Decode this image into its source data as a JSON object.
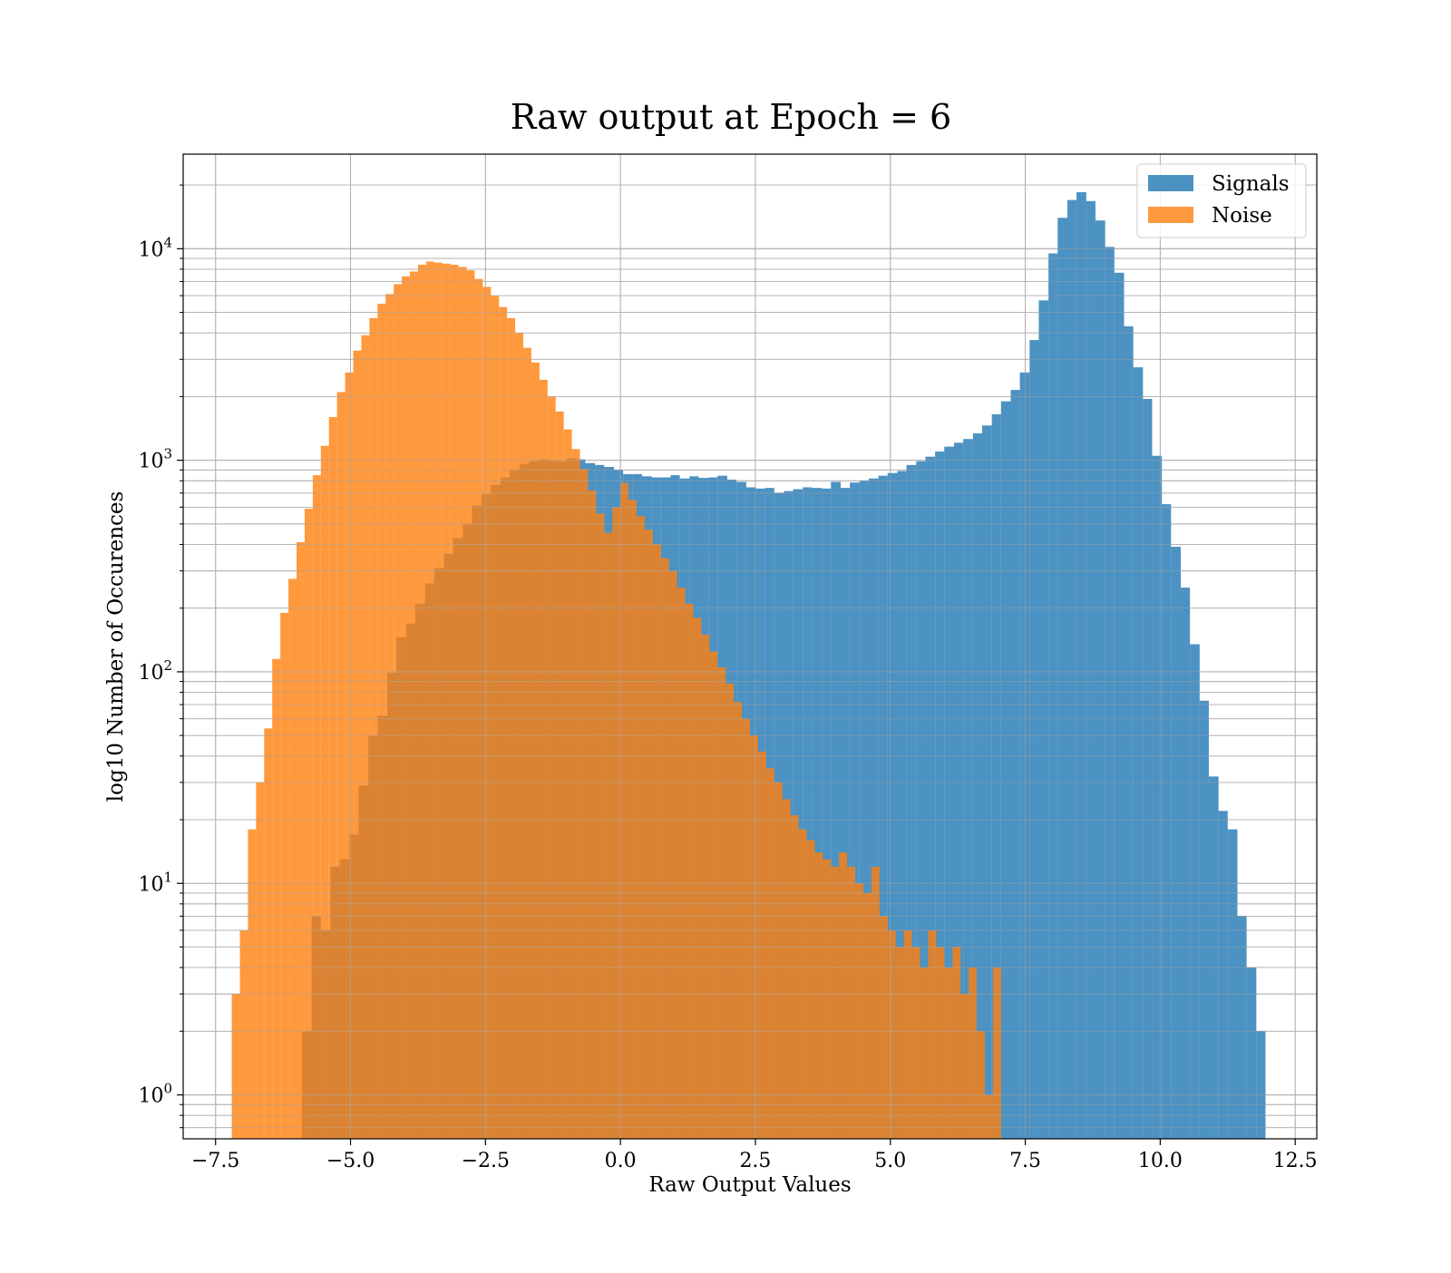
{
  "chart_data": {
    "type": "bar",
    "subtype": "overlaid-histogram",
    "title": "Raw output at Epoch = 6",
    "xlabel": "Raw Output Values",
    "ylabel": "log10 Number of Occurences",
    "y_scale": "log",
    "xlim": [
      -8.1,
      12.9
    ],
    "ylim": [
      0.62,
      28000
    ],
    "grid": true,
    "grid_minor": true,
    "legend": {
      "position": "top-right"
    },
    "x_ticks": [
      {
        "value": -7.5,
        "label": "−7.5"
      },
      {
        "value": -5.0,
        "label": "−5.0"
      },
      {
        "value": -2.5,
        "label": "−2.5"
      },
      {
        "value": 0.0,
        "label": "0.0"
      },
      {
        "value": 2.5,
        "label": "2.5"
      },
      {
        "value": 5.0,
        "label": "5.0"
      },
      {
        "value": 7.5,
        "label": "7.5"
      },
      {
        "value": 10.0,
        "label": "10.0"
      },
      {
        "value": 12.5,
        "label": "12.5"
      }
    ],
    "y_ticks": [
      {
        "value": 1,
        "base": "10",
        "exp": "0"
      },
      {
        "value": 10,
        "base": "10",
        "exp": "1"
      },
      {
        "value": 100,
        "base": "10",
        "exp": "2"
      },
      {
        "value": 1000,
        "base": "10",
        "exp": "3"
      },
      {
        "value": 10000,
        "base": "10",
        "exp": "4"
      }
    ],
    "series": [
      {
        "name": "Signals",
        "color": "#1f77b4",
        "opacity": 0.8,
        "bins": [
          [
            -5.9,
            -5.72,
            2
          ],
          [
            -5.72,
            -5.55,
            7
          ],
          [
            -5.55,
            -5.37,
            6
          ],
          [
            -5.37,
            -5.2,
            12
          ],
          [
            -5.2,
            -5.02,
            13
          ],
          [
            -5.02,
            -4.85,
            17
          ],
          [
            -4.85,
            -4.67,
            29
          ],
          [
            -4.67,
            -4.5,
            50
          ],
          [
            -4.5,
            -4.32,
            62
          ],
          [
            -4.32,
            -4.15,
            99
          ],
          [
            -4.15,
            -3.97,
            146
          ],
          [
            -3.97,
            -3.8,
            169
          ],
          [
            -3.8,
            -3.62,
            210
          ],
          [
            -3.62,
            -3.45,
            262
          ],
          [
            -3.45,
            -3.27,
            309
          ],
          [
            -3.27,
            -3.1,
            361
          ],
          [
            -3.1,
            -2.92,
            430
          ],
          [
            -2.92,
            -2.75,
            500
          ],
          [
            -2.75,
            -2.57,
            610
          ],
          [
            -2.57,
            -2.4,
            690
          ],
          [
            -2.4,
            -2.22,
            765
          ],
          [
            -2.22,
            -2.05,
            830
          ],
          [
            -2.05,
            -1.87,
            900
          ],
          [
            -1.87,
            -1.7,
            960
          ],
          [
            -1.7,
            -1.52,
            990
          ],
          [
            -1.52,
            -1.35,
            1010
          ],
          [
            -1.35,
            -1.17,
            1000
          ],
          [
            -1.17,
            -1.0,
            990
          ],
          [
            -1.0,
            -0.82,
            1020
          ],
          [
            -0.82,
            -0.65,
            1010
          ],
          [
            -0.65,
            -0.47,
            970
          ],
          [
            -0.47,
            -0.3,
            950
          ],
          [
            -0.3,
            -0.12,
            930
          ],
          [
            -0.12,
            0.05,
            900
          ],
          [
            0.05,
            0.23,
            860
          ],
          [
            0.23,
            0.4,
            860
          ],
          [
            0.4,
            0.58,
            840
          ],
          [
            0.58,
            0.75,
            830
          ],
          [
            0.75,
            0.93,
            830
          ],
          [
            0.93,
            1.1,
            850
          ],
          [
            1.1,
            1.28,
            820
          ],
          [
            1.28,
            1.45,
            840
          ],
          [
            1.45,
            1.63,
            825
          ],
          [
            1.63,
            1.8,
            830
          ],
          [
            1.8,
            1.98,
            845
          ],
          [
            1.98,
            2.15,
            810
          ],
          [
            2.15,
            2.33,
            790
          ],
          [
            2.33,
            2.5,
            745
          ],
          [
            2.5,
            2.68,
            735
          ],
          [
            2.68,
            2.85,
            740
          ],
          [
            2.85,
            3.03,
            700
          ],
          [
            3.03,
            3.2,
            715
          ],
          [
            3.2,
            3.38,
            730
          ],
          [
            3.38,
            3.55,
            745
          ],
          [
            3.55,
            3.73,
            740
          ],
          [
            3.73,
            3.9,
            735
          ],
          [
            3.9,
            4.08,
            790
          ],
          [
            4.08,
            4.25,
            740
          ],
          [
            4.25,
            4.43,
            785
          ],
          [
            4.43,
            4.6,
            800
          ],
          [
            4.6,
            4.78,
            820
          ],
          [
            4.78,
            4.95,
            845
          ],
          [
            4.95,
            5.13,
            870
          ],
          [
            5.13,
            5.3,
            890
          ],
          [
            5.3,
            5.48,
            950
          ],
          [
            5.48,
            5.65,
            990
          ],
          [
            5.65,
            5.83,
            1040
          ],
          [
            5.83,
            6.0,
            1100
          ],
          [
            6.0,
            6.18,
            1160
          ],
          [
            6.18,
            6.35,
            1210
          ],
          [
            6.35,
            6.53,
            1260
          ],
          [
            6.53,
            6.7,
            1340
          ],
          [
            6.7,
            6.88,
            1460
          ],
          [
            6.88,
            7.05,
            1650
          ],
          [
            7.05,
            7.23,
            1900
          ],
          [
            7.23,
            7.4,
            2150
          ],
          [
            7.4,
            7.58,
            2600
          ],
          [
            7.58,
            7.75,
            3700
          ],
          [
            7.75,
            7.93,
            5700
          ],
          [
            7.93,
            8.1,
            9500
          ],
          [
            8.1,
            8.28,
            14000
          ],
          [
            8.28,
            8.45,
            17000
          ],
          [
            8.45,
            8.63,
            18500
          ],
          [
            8.63,
            8.8,
            16800
          ],
          [
            8.8,
            8.98,
            13600
          ],
          [
            8.98,
            9.15,
            10200
          ],
          [
            9.15,
            9.33,
            7700
          ],
          [
            9.33,
            9.5,
            4300
          ],
          [
            9.5,
            9.68,
            2750
          ],
          [
            9.68,
            9.85,
            1950
          ],
          [
            9.85,
            10.03,
            1050
          ],
          [
            10.03,
            10.2,
            620
          ],
          [
            10.2,
            10.38,
            390
          ],
          [
            10.38,
            10.55,
            250
          ],
          [
            10.55,
            10.73,
            135
          ],
          [
            10.73,
            10.9,
            73
          ],
          [
            10.9,
            11.08,
            32
          ],
          [
            11.08,
            11.25,
            22
          ],
          [
            11.25,
            11.43,
            18
          ],
          [
            11.43,
            11.6,
            7
          ],
          [
            11.6,
            11.78,
            4
          ],
          [
            11.78,
            11.95,
            2
          ]
        ]
      },
      {
        "name": "Noise",
        "color": "#ff7f0e",
        "opacity": 0.8,
        "bins": [
          [
            -7.2,
            -7.05,
            3
          ],
          [
            -7.05,
            -6.9,
            6
          ],
          [
            -6.9,
            -6.75,
            18
          ],
          [
            -6.75,
            -6.6,
            30
          ],
          [
            -6.6,
            -6.45,
            54
          ],
          [
            -6.45,
            -6.3,
            115
          ],
          [
            -6.3,
            -6.15,
            190
          ],
          [
            -6.15,
            -6.0,
            275
          ],
          [
            -6.0,
            -5.85,
            410
          ],
          [
            -5.85,
            -5.7,
            590
          ],
          [
            -5.7,
            -5.55,
            850
          ],
          [
            -5.55,
            -5.4,
            1170
          ],
          [
            -5.4,
            -5.25,
            1600
          ],
          [
            -5.25,
            -5.1,
            2100
          ],
          [
            -5.1,
            -4.95,
            2600
          ],
          [
            -4.95,
            -4.8,
            3300
          ],
          [
            -4.8,
            -4.65,
            3900
          ],
          [
            -4.65,
            -4.5,
            4700
          ],
          [
            -4.5,
            -4.35,
            5500
          ],
          [
            -4.35,
            -4.2,
            6100
          ],
          [
            -4.2,
            -4.05,
            6800
          ],
          [
            -4.05,
            -3.9,
            7400
          ],
          [
            -3.9,
            -3.75,
            7800
          ],
          [
            -3.75,
            -3.6,
            8400
          ],
          [
            -3.6,
            -3.45,
            8700
          ],
          [
            -3.45,
            -3.3,
            8600
          ],
          [
            -3.3,
            -3.15,
            8500
          ],
          [
            -3.15,
            -3.0,
            8400
          ],
          [
            -3.0,
            -2.85,
            8200
          ],
          [
            -2.85,
            -2.7,
            7900
          ],
          [
            -2.7,
            -2.55,
            7200
          ],
          [
            -2.55,
            -2.4,
            6600
          ],
          [
            -2.4,
            -2.25,
            6000
          ],
          [
            -2.25,
            -2.1,
            5300
          ],
          [
            -2.1,
            -1.95,
            4700
          ],
          [
            -1.95,
            -1.8,
            4000
          ],
          [
            -1.8,
            -1.65,
            3400
          ],
          [
            -1.65,
            -1.5,
            2900
          ],
          [
            -1.5,
            -1.35,
            2400
          ],
          [
            -1.35,
            -1.2,
            2000
          ],
          [
            -1.2,
            -1.05,
            1700
          ],
          [
            -1.05,
            -0.9,
            1400
          ],
          [
            -0.9,
            -0.75,
            1130
          ],
          [
            -0.75,
            -0.6,
            910
          ],
          [
            -0.6,
            -0.45,
            720
          ],
          [
            -0.45,
            -0.3,
            560
          ],
          [
            -0.3,
            -0.15,
            455
          ],
          [
            -0.15,
            0.0,
            600
          ],
          [
            0.0,
            0.15,
            780
          ],
          [
            0.15,
            0.3,
            650
          ],
          [
            0.3,
            0.45,
            545
          ],
          [
            0.45,
            0.6,
            470
          ],
          [
            0.6,
            0.75,
            400
          ],
          [
            0.75,
            0.9,
            345
          ],
          [
            0.9,
            1.05,
            300
          ],
          [
            1.05,
            1.2,
            250
          ],
          [
            1.2,
            1.35,
            210
          ],
          [
            1.35,
            1.5,
            180
          ],
          [
            1.5,
            1.65,
            150
          ],
          [
            1.65,
            1.8,
            125
          ],
          [
            1.8,
            1.95,
            105
          ],
          [
            1.95,
            2.1,
            88
          ],
          [
            2.1,
            2.25,
            72
          ],
          [
            2.25,
            2.4,
            60
          ],
          [
            2.4,
            2.55,
            50
          ],
          [
            2.55,
            2.7,
            42
          ],
          [
            2.7,
            2.85,
            35
          ],
          [
            2.85,
            3.0,
            30
          ],
          [
            3.0,
            3.15,
            25
          ],
          [
            3.15,
            3.3,
            21
          ],
          [
            3.3,
            3.45,
            18
          ],
          [
            3.45,
            3.6,
            16
          ],
          [
            3.6,
            3.75,
            14
          ],
          [
            3.75,
            3.9,
            13
          ],
          [
            3.9,
            4.05,
            12
          ],
          [
            4.05,
            4.2,
            14
          ],
          [
            4.2,
            4.35,
            12
          ],
          [
            4.35,
            4.5,
            10
          ],
          [
            4.5,
            4.65,
            9
          ],
          [
            4.65,
            4.8,
            12
          ],
          [
            4.8,
            4.95,
            7
          ],
          [
            4.95,
            5.1,
            6
          ],
          [
            5.1,
            5.25,
            5
          ],
          [
            5.25,
            5.4,
            6
          ],
          [
            5.4,
            5.55,
            5
          ],
          [
            5.55,
            5.7,
            4
          ],
          [
            5.7,
            5.85,
            6
          ],
          [
            5.85,
            6.0,
            5
          ],
          [
            6.0,
            6.15,
            4
          ],
          [
            6.15,
            6.3,
            5
          ],
          [
            6.3,
            6.45,
            3
          ],
          [
            6.45,
            6.6,
            4
          ],
          [
            6.6,
            6.75,
            2
          ],
          [
            6.75,
            6.9,
            1
          ],
          [
            6.9,
            7.05,
            4
          ]
        ]
      }
    ]
  }
}
